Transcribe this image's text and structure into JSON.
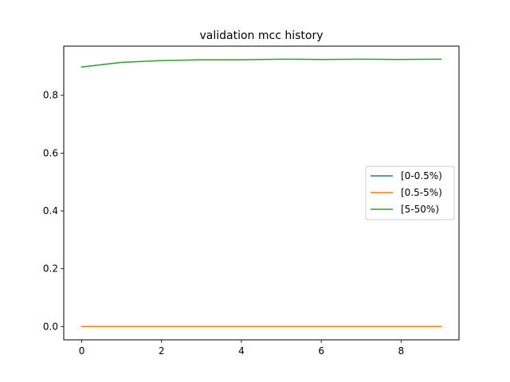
{
  "chart_data": {
    "type": "line",
    "title": "validation mcc history",
    "xlabel": "",
    "ylabel": "",
    "xlim": [
      -0.45,
      9.45
    ],
    "ylim": [
      -0.046,
      0.97
    ],
    "x_ticks": [
      0,
      2,
      4,
      6,
      8
    ],
    "y_ticks": [
      0.0,
      0.2,
      0.4,
      0.6,
      0.8
    ],
    "x_tick_labels": [
      "0",
      "2",
      "4",
      "6",
      "8"
    ],
    "y_tick_labels": [
      "0.0",
      "0.2",
      "0.4",
      "0.6",
      "0.8"
    ],
    "grid": false,
    "legend_position": "center-right",
    "x": [
      0,
      1,
      2,
      3,
      4,
      5,
      6,
      7,
      8,
      9
    ],
    "series": [
      {
        "name": "[0-0.5%)",
        "color": "#1f77b4",
        "values": [
          0,
          0,
          0,
          0,
          0,
          0,
          0,
          0,
          0,
          0
        ]
      },
      {
        "name": "[0.5-5%)",
        "color": "#ff7f0e",
        "values": [
          0,
          0,
          0,
          0,
          0,
          0,
          0,
          0,
          0,
          0
        ]
      },
      {
        "name": "[5-50%)",
        "color": "#2ca02c",
        "values": [
          0.898,
          0.914,
          0.92,
          0.923,
          0.923,
          0.925,
          0.924,
          0.925,
          0.924,
          0.925
        ]
      }
    ]
  }
}
